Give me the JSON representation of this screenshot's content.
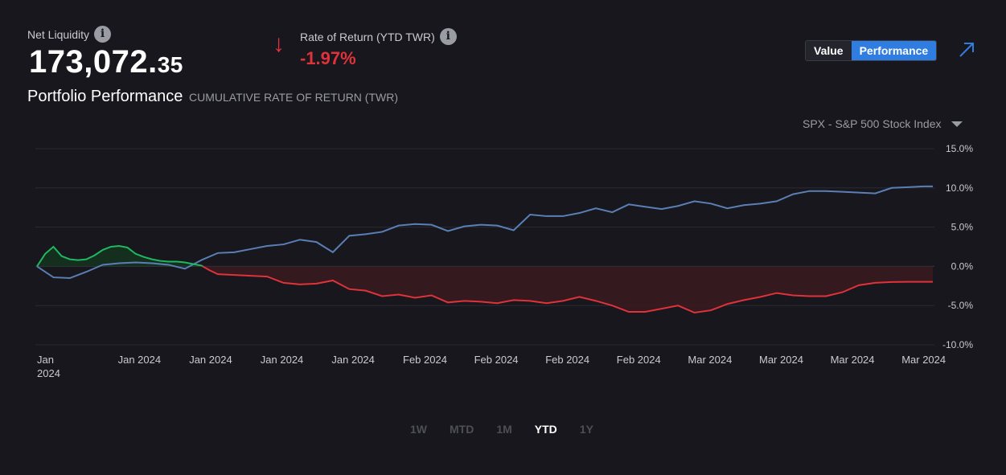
{
  "header": {
    "net_liquidity_label": "Net Liquidity",
    "net_liquidity_main": "173,072.",
    "net_liquidity_cents": "35",
    "ror_label": "Rate of Return (YTD TWR)",
    "ror_value": "-1.97%",
    "ror_direction_icon": "arrow-down-icon",
    "info_glyph": "i",
    "title": "Portfolio Performance",
    "subtitle": "CUMULATIVE RATE OF RETURN (TWR)"
  },
  "toggle": {
    "value_label": "Value",
    "performance_label": "Performance",
    "active": "Performance"
  },
  "benchmark": {
    "selected": "SPX - S&P 500 Stock Index"
  },
  "ranges": [
    {
      "label": "1W",
      "active": false
    },
    {
      "label": "MTD",
      "active": false
    },
    {
      "label": "1M",
      "active": false
    },
    {
      "label": "YTD",
      "active": true
    },
    {
      "label": "1Y",
      "active": false
    }
  ],
  "colors": {
    "positive": "#1fb85f",
    "negative": "#e0323a",
    "benchmark": "#5a7fb5",
    "accent": "#2f7de1"
  },
  "chart_data": {
    "type": "line",
    "title": "Portfolio Performance",
    "y_ticks": [
      15,
      10,
      5,
      0,
      -5,
      -10
    ],
    "y_tick_labels": [
      "15.0%",
      "10.0%",
      "5.0%",
      "0.0%",
      "-5.0%",
      "-10.0%"
    ],
    "ylim": [
      -10,
      15
    ],
    "x_tick_labels": [
      "Jan 2024",
      "Jan 2024",
      "Jan 2024",
      "Jan 2024",
      "Jan 2024",
      "Feb 2024",
      "Feb 2024",
      "Feb 2024",
      "Feb 2024",
      "Mar 2024",
      "Mar 2024",
      "Mar 2024",
      "Mar 2024"
    ],
    "x_count": 110,
    "series": [
      {
        "name": "Portfolio",
        "x": [
          0,
          1,
          2,
          3,
          4,
          5,
          6,
          7,
          8,
          9,
          10,
          11,
          12,
          13,
          14,
          15,
          16,
          17,
          18,
          19,
          20,
          21,
          22,
          24,
          26,
          28,
          30,
          32,
          34,
          36,
          38,
          40,
          42,
          44,
          46,
          48,
          50,
          52,
          54,
          56,
          58,
          60,
          62,
          64,
          66,
          68,
          70,
          72,
          74,
          76,
          78,
          80,
          82,
          84,
          86,
          88,
          90,
          92,
          94,
          96,
          98,
          100,
          102,
          104,
          106,
          108,
          109
        ],
        "values": [
          0,
          1.6,
          2.5,
          1.3,
          0.9,
          0.8,
          0.9,
          1.4,
          2.1,
          2.5,
          2.6,
          2.4,
          1.6,
          1.2,
          0.9,
          0.7,
          0.6,
          0.6,
          0.5,
          0.3,
          0.1,
          -0.5,
          -1,
          -1.1,
          -1.2,
          -1.3,
          -2.1,
          -2.3,
          -2.2,
          -1.8,
          -2.9,
          -3.1,
          -3.8,
          -3.6,
          -4,
          -3.7,
          -4.6,
          -4.4,
          -4.5,
          -4.7,
          -4.3,
          -4.4,
          -4.7,
          -4.4,
          -3.9,
          -4.4,
          -5,
          -5.8,
          -5.8,
          -5.4,
          -5,
          -5.9,
          -5.6,
          -4.8,
          -4.3,
          -3.9,
          -3.4,
          -3.7,
          -3.8,
          -3.8,
          -3.3,
          -2.4,
          -2.1,
          -2,
          -1.97,
          -1.97,
          -1.97
        ]
      },
      {
        "name": "SPX - S&P 500 Stock Index",
        "x": [
          0,
          2,
          4,
          6,
          8,
          10,
          12,
          14,
          16,
          18,
          20,
          22,
          24,
          26,
          28,
          30,
          32,
          34,
          36,
          38,
          40,
          42,
          44,
          46,
          48,
          50,
          52,
          54,
          56,
          58,
          60,
          62,
          64,
          66,
          68,
          70,
          72,
          74,
          76,
          78,
          80,
          82,
          84,
          86,
          88,
          90,
          92,
          94,
          96,
          98,
          100,
          102,
          104,
          106,
          108,
          109
        ],
        "values": [
          0,
          -1.4,
          -1.5,
          -0.7,
          0.2,
          0.4,
          0.5,
          0.4,
          0.2,
          -0.3,
          0.8,
          1.7,
          1.8,
          2.2,
          2.6,
          2.8,
          3.4,
          3.1,
          1.8,
          3.9,
          4.1,
          4.4,
          5.2,
          5.4,
          5.3,
          4.5,
          5.1,
          5.3,
          5.2,
          4.6,
          6.6,
          6.4,
          6.4,
          6.8,
          7.4,
          6.9,
          7.9,
          7.6,
          7.3,
          7.7,
          8.3,
          8.0,
          7.4,
          7.8,
          8.0,
          8.3,
          9.2,
          9.6,
          9.6,
          9.5,
          9.4,
          9.3,
          10.0,
          10.1,
          10.2,
          10.2
        ]
      }
    ]
  }
}
